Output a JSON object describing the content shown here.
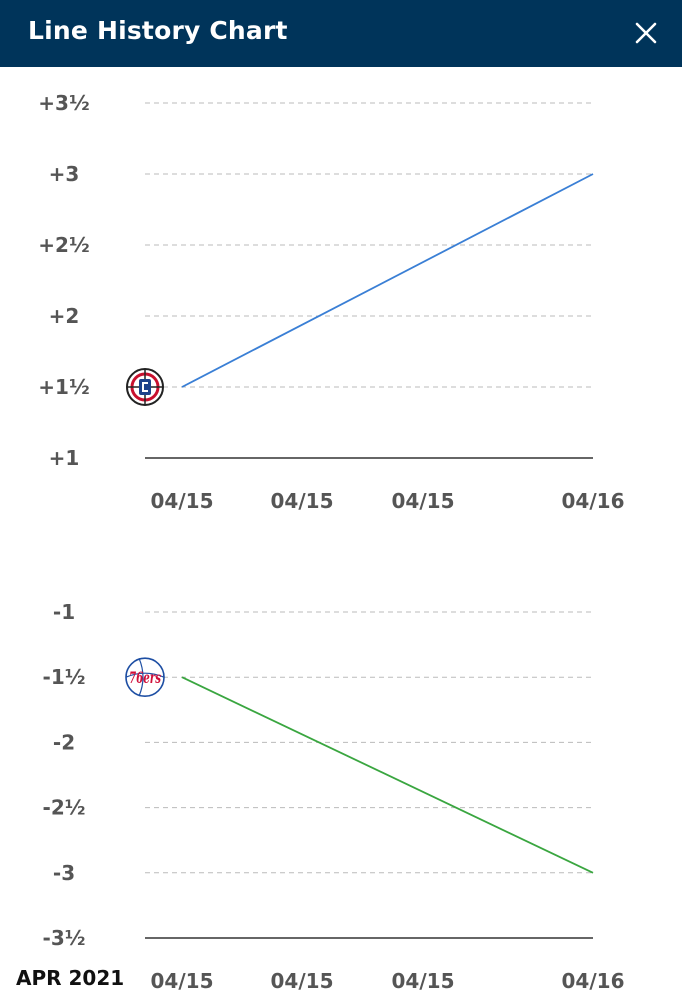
{
  "header": {
    "title": "Line History Chart"
  },
  "footer": {
    "date_label": "APR 2021"
  },
  "chart_data": [
    {
      "type": "line",
      "team": "LA Clippers",
      "team_icon": "clippers-logo-icon",
      "color": "#3a7fd5",
      "ylim": [
        1,
        3.5
      ],
      "y_ticks": [
        3.5,
        3,
        2.5,
        2,
        1.5,
        1
      ],
      "y_tick_labels": [
        "+3½",
        "+3",
        "+2½",
        "+2",
        "+1½",
        "+1"
      ],
      "x_tick_labels": [
        "04/15",
        "04/15",
        "04/15",
        "04/16"
      ],
      "points": [
        {
          "x": "04/15",
          "y": 1.5
        },
        {
          "x": "04/16",
          "y": 3
        }
      ],
      "grid": true
    },
    {
      "type": "line",
      "team": "Philadelphia 76ers",
      "team_icon": "sixers-logo-icon",
      "color": "#3aa640",
      "ylim": [
        -3.5,
        -1
      ],
      "y_ticks": [
        -1,
        -1.5,
        -2,
        -2.5,
        -3,
        -3.5
      ],
      "y_tick_labels": [
        "-1",
        "-1½",
        "-2",
        "-2½",
        "-3",
        "-3½"
      ],
      "x_tick_labels": [
        "04/15",
        "04/15",
        "04/15",
        "04/16"
      ],
      "points": [
        {
          "x": "04/15",
          "y": -1.5
        },
        {
          "x": "04/16",
          "y": -3
        }
      ],
      "grid": true
    }
  ]
}
